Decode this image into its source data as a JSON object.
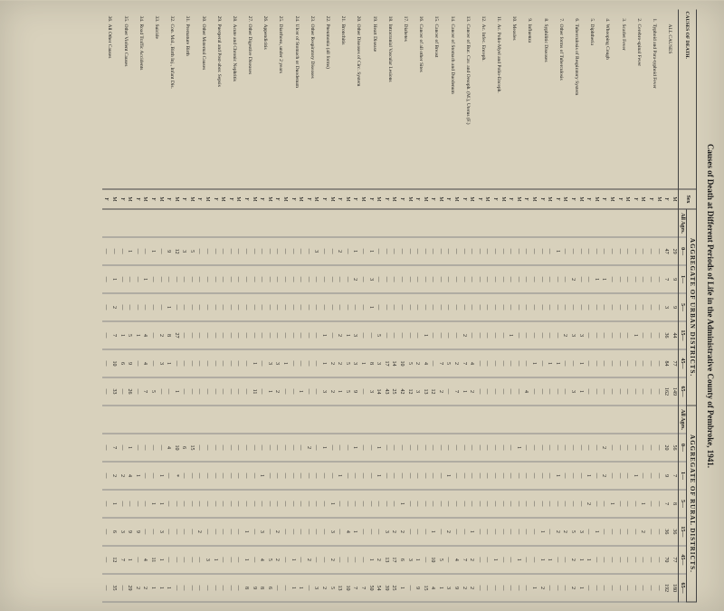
{
  "title": "Causes of Death at Different Periods of Life in the Administrative County of Pembroke, 1941.",
  "headers": {
    "causes": "CAUSES OF DEATH.",
    "urban": "AGGREGATE OF URBAN DISTRICTS.",
    "rural": "AGGREGATE OF RURAL DISTRICTS.",
    "sex": "Sex",
    "all_ages": "All Ages.",
    "age_cols": [
      "0—",
      "1—",
      "5—",
      "15—",
      "45—",
      "65—"
    ]
  },
  "rows": [
    {
      "n": "",
      "label": "ALL CAUSES",
      "sex": [
        "M",
        "F"
      ],
      "u": [
        "",
        "29",
        "9",
        "9",
        "44",
        "77",
        "149",
        "",
        "56",
        "7",
        "8",
        "36",
        "77",
        "180"
      ],
      "u2": [
        "",
        "47",
        "7",
        "3",
        "36",
        "84",
        "162",
        "",
        "20",
        "9",
        "7",
        "36",
        "70",
        "192"
      ]
    },
    {
      "n": "1.",
      "label": "Typhoid and Para-typhoid Fever",
      "sex": [
        "M",
        "F"
      ],
      "u": [
        "",
        "—",
        "—",
        "—",
        "—",
        "—",
        "—",
        "",
        "—",
        "—",
        "—",
        "—",
        "—",
        "—"
      ],
      "u2": [
        "",
        "—",
        "—",
        "—",
        "—",
        "—",
        "—",
        "",
        "—",
        "—",
        "—",
        "—",
        "—",
        "—"
      ]
    },
    {
      "n": "2.",
      "label": "Cerebro-spinal Fever",
      "sex": [
        "M",
        "F"
      ],
      "u": [
        "",
        "—",
        "—",
        "—",
        "—",
        "—",
        "—",
        "",
        "—",
        "—",
        "1",
        "2",
        "—",
        "—"
      ],
      "u2": [
        "",
        "—",
        "—",
        "—",
        "1",
        "—",
        "—",
        "",
        "—",
        "1",
        "—",
        "—",
        "—",
        "—"
      ]
    },
    {
      "n": "3.",
      "label": "Scarlet Fever",
      "sex": [
        "M",
        "F"
      ],
      "u": [
        "",
        "—",
        "—",
        "—",
        "—",
        "—",
        "—",
        "",
        "—",
        "—",
        "—",
        "—",
        "—",
        "—"
      ],
      "u2": [
        "",
        "—",
        "—",
        "—",
        "—",
        "—",
        "—",
        "",
        "—",
        "—",
        "—",
        "—",
        "—",
        "—"
      ]
    },
    {
      "n": "4.",
      "label": "Whooping Cough",
      "sex": [
        "M",
        "F"
      ],
      "u": [
        "",
        "—",
        "—",
        "—",
        "—",
        "—",
        "—",
        "",
        "—",
        "—",
        "1",
        "—",
        "—",
        "—"
      ],
      "u2": [
        "",
        "—",
        "1",
        "—",
        "—",
        "—",
        "—",
        "",
        "2",
        "2",
        "—",
        "—",
        "—",
        "—"
      ]
    },
    {
      "n": "5.",
      "label": "Diphtheria",
      "sex": [
        "M",
        "F"
      ],
      "u": [
        "",
        "—",
        "1",
        "—",
        "—",
        "—",
        "—",
        "",
        "—",
        "—",
        "—",
        "1",
        "—",
        "—"
      ],
      "u2": [
        "",
        "—",
        "—",
        "—",
        "—",
        "—",
        "—",
        "",
        "—",
        "1",
        "2",
        "—",
        "1",
        "—"
      ]
    },
    {
      "n": "6.",
      "label": "Tuberculosis of Respiratory System",
      "sex": [
        "M",
        "F"
      ],
      "u": [
        "",
        "—",
        "—",
        "—",
        "3",
        "1",
        "1",
        "",
        "—",
        "—",
        "—",
        "3",
        "1",
        "1"
      ],
      "u2": [
        "",
        "—",
        "2",
        "—",
        "3",
        "—",
        "3",
        "",
        "—",
        "—",
        "—",
        "5",
        "2",
        "2"
      ]
    },
    {
      "n": "7.",
      "label": "Other forms of Tuberculosis",
      "sex": [
        "M",
        "F"
      ],
      "u": [
        "",
        "—",
        "—",
        "—",
        "2",
        "—",
        "—",
        "",
        "—",
        "—",
        "—",
        "2",
        "—",
        "—"
      ],
      "u2": [
        "",
        "1",
        "—",
        "—",
        "—",
        "1",
        "—",
        "",
        "—",
        "1",
        "—",
        "2",
        "—",
        "—"
      ]
    },
    {
      "n": "8.",
      "label": "Syphilitic Diseases",
      "sex": [
        "M",
        "F"
      ],
      "u": [
        "",
        "—",
        "—",
        "—",
        "—",
        "1",
        "—",
        "",
        "—",
        "—",
        "—",
        "—",
        "1",
        "—"
      ],
      "u2": [
        "",
        "—",
        "—",
        "—",
        "—",
        "—",
        "—",
        "",
        "—",
        "—",
        "—",
        "1",
        "1",
        "2"
      ]
    },
    {
      "n": "9.",
      "label": "Influenza",
      "sex": [
        "M",
        "F"
      ],
      "u": [
        "",
        "—",
        "—",
        "—",
        "—",
        "1",
        "—",
        "",
        "—",
        "—",
        "—",
        "—",
        "—",
        "1"
      ],
      "u2": [
        "",
        "—",
        "—",
        "—",
        "—",
        "—",
        "4",
        "",
        "—",
        "—",
        "—",
        "—",
        "—",
        "—"
      ]
    },
    {
      "n": "10.",
      "label": "Measles",
      "sex": [
        "M",
        "F"
      ],
      "u": [
        "",
        "—",
        "—",
        "—",
        "—",
        "—",
        "—",
        "",
        "1",
        "—",
        "—",
        "—",
        "1",
        "—"
      ],
      "u2": [
        "",
        "—",
        "—",
        "—",
        "1",
        "—",
        "—",
        "",
        "—",
        "—",
        "—",
        "—",
        "—",
        "—"
      ]
    },
    {
      "n": "11.",
      "label": "Ac. Polio-Myel and Polio-Enceph.",
      "sex": [
        "M",
        "F"
      ],
      "u": [
        "",
        "—",
        "—",
        "—",
        "—",
        "—",
        "—",
        "",
        "—",
        "—",
        "—",
        "—",
        "—",
        "—"
      ],
      "u2": [
        "",
        "—",
        "—",
        "—",
        "—",
        "—",
        "—",
        "",
        "—",
        "—",
        "—",
        "—",
        "1",
        "—"
      ]
    },
    {
      "n": "12.",
      "label": "Ac. Infec. Enceph.",
      "sex": [
        "M",
        "F"
      ],
      "u": [
        "",
        "—",
        "—",
        "—",
        "—",
        "—",
        "—",
        "",
        "—",
        "—",
        "—",
        "—",
        "—",
        "—"
      ],
      "u2": [
        "",
        "—",
        "—",
        "—",
        "—",
        "—",
        "—",
        "",
        "—",
        "—",
        "—",
        "—",
        "—",
        "—"
      ]
    },
    {
      "n": "13.",
      "label": "Cancer of Buc. Cav. and Oesoph. (M.), Uterus (F.)",
      "sex": [
        "M",
        "F"
      ],
      "u": [
        "",
        "—",
        "—",
        "—",
        "—",
        "4",
        "2",
        "",
        "—",
        "—",
        "—",
        "1",
        "2",
        "2"
      ],
      "u2": [
        "",
        "—",
        "—",
        "—",
        "2",
        "7",
        "1",
        "",
        "—",
        "—",
        "—",
        "—",
        "7",
        "2"
      ]
    },
    {
      "n": "14.",
      "label": "Cancer of Stomach and Duodenum",
      "sex": [
        "M",
        "F"
      ],
      "u": [
        "",
        "—",
        "—",
        "—",
        "—",
        "2",
        "7",
        "",
        "—",
        "—",
        "—",
        "—",
        "4",
        "9"
      ],
      "u2": [
        "",
        "—",
        "—",
        "—",
        "—",
        "5",
        "—",
        "",
        "—",
        "1",
        "—",
        "2",
        "—",
        "3"
      ]
    },
    {
      "n": "15.",
      "label": "Cancer of Breast",
      "sex": [
        "M",
        "F"
      ],
      "u": [
        "",
        "—",
        "—",
        "—",
        "—",
        "7",
        "2",
        "",
        "—",
        "—",
        "—",
        "—",
        "5",
        "1"
      ],
      "u2": [
        "",
        "—",
        "—",
        "—",
        "—",
        "—",
        "12",
        "",
        "—",
        "—",
        "—",
        "1",
        "10",
        "4"
      ]
    },
    {
      "n": "16.",
      "label": "Cancer of all other Sites",
      "sex": [
        "M",
        "F"
      ],
      "u": [
        "",
        "—",
        "—",
        "—",
        "1",
        "4",
        "13",
        "",
        "—",
        "—",
        "—",
        "—",
        "—",
        "15"
      ],
      "u2": [
        "",
        "—",
        "—",
        "—",
        "—",
        "2",
        "3",
        "",
        "—",
        "—",
        "—",
        "—",
        "1",
        "9"
      ]
    },
    {
      "n": "17.",
      "label": "Diabetes",
      "sex": [
        "M",
        "F"
      ],
      "u": [
        "",
        "—",
        "—",
        "—",
        "—",
        "5",
        "12",
        "",
        "—",
        "—",
        "—",
        "—",
        "3",
        "—"
      ],
      "u2": [
        "",
        "—",
        "—",
        "—",
        "—",
        "10",
        "42",
        "",
        "—",
        "—",
        "1",
        "2",
        "6",
        "1"
      ]
    },
    {
      "n": "18.",
      "label": "Intracranial Vascular Lesions",
      "sex": [
        "M",
        "F"
      ],
      "u": [
        "",
        "—",
        "—",
        "—",
        "—",
        "14",
        "25",
        "",
        "—",
        "—",
        "—",
        "2",
        "17",
        "25"
      ],
      "u2": [
        "",
        "—",
        "—",
        "—",
        "—",
        "17",
        "43",
        "",
        "—",
        "—",
        "—",
        "3",
        "13",
        "39"
      ]
    },
    {
      "n": "19.",
      "label": "Heart Disease",
      "sex": [
        "M",
        "F"
      ],
      "u": [
        "",
        "—",
        "—",
        "—",
        "5",
        "3",
        "14",
        "",
        "1",
        "1",
        "—",
        "—",
        "2",
        "54"
      ],
      "u2": [
        "",
        "1",
        "3",
        "1",
        "—",
        "8",
        "3",
        "",
        "—",
        "—",
        "—",
        "—",
        "1",
        "50"
      ]
    },
    {
      "n": "20.",
      "label": "Other Diseases of Circ. System",
      "sex": [
        "M",
        "F"
      ],
      "u": [
        "",
        "—",
        "—",
        "—",
        "—",
        "1",
        "—",
        "",
        "—",
        "—",
        "—",
        "—",
        "—",
        "7"
      ],
      "u2": [
        "",
        "1",
        "2",
        "—",
        "3",
        "3",
        "9",
        "",
        "1",
        "—",
        "—",
        "1",
        "—",
        "7"
      ]
    },
    {
      "n": "21.",
      "label": "Bronchitis",
      "sex": [
        "M",
        "F"
      ],
      "u": [
        "",
        "—",
        "—",
        "—",
        "1",
        "5",
        "5",
        "",
        "—",
        "—",
        "—",
        "4",
        "—",
        "10"
      ],
      "u2": [
        "",
        "2",
        "—",
        "—",
        "2",
        "2",
        "1",
        "",
        "—",
        "1",
        "—",
        "—",
        "—",
        "13"
      ]
    },
    {
      "n": "22.",
      "label": "Pneumonia (all forms)",
      "sex": [
        "M",
        "F"
      ],
      "u": [
        "",
        "—",
        "—",
        "—",
        "—",
        "2",
        "2",
        "",
        "—",
        "—",
        "1",
        "3",
        "2",
        "5"
      ],
      "u2": [
        "",
        "—",
        "—",
        "—",
        "1",
        "1",
        "3",
        "",
        "1",
        "—",
        "—",
        "—",
        "—",
        "2"
      ]
    },
    {
      "n": "23.",
      "label": "Other Respiratory Diseases",
      "sex": [
        "M",
        "F"
      ],
      "u": [
        "",
        "3",
        "—",
        "—",
        "—",
        "—",
        "—",
        "",
        "—",
        "—",
        "—",
        "—",
        "—",
        "3"
      ],
      "u2": [
        "",
        "—",
        "—",
        "—",
        "—",
        "—",
        "—",
        "",
        "2",
        "—",
        "—",
        "—",
        "2",
        "—"
      ]
    },
    {
      "n": "24.",
      "label": "Ulcer of Stomach or Duodenum",
      "sex": [
        "M",
        "F"
      ],
      "u": [
        "",
        "—",
        "—",
        "—",
        "—",
        "—",
        "1",
        "",
        "—",
        "—",
        "—",
        "—",
        "—",
        "1"
      ],
      "u2": [
        "",
        "—",
        "—",
        "—",
        "—",
        "—",
        "—",
        "",
        "—",
        "—",
        "—",
        "—",
        "1",
        "1"
      ]
    },
    {
      "n": "25.",
      "label": "Diarrhoea, under 2 years",
      "sex": [
        "M",
        "F"
      ],
      "u": [
        "",
        "—",
        "—",
        "—",
        "—",
        "1",
        "—",
        "",
        "—",
        "—",
        "—",
        "—",
        "—",
        "—"
      ],
      "u2": [
        "",
        "—",
        "—",
        "—",
        "—",
        "3",
        "2",
        "",
        "—",
        "—",
        "—",
        "2",
        "2",
        "—"
      ]
    },
    {
      "n": "26.",
      "label": "Appendicitis",
      "sex": [
        "M",
        "F"
      ],
      "u": [
        "",
        "—",
        "—",
        "—",
        "—",
        "3",
        "1",
        "",
        "—",
        "—",
        "—",
        "—",
        "5",
        "6"
      ],
      "u2": [
        "",
        "—",
        "—",
        "—",
        "—",
        "—",
        "—",
        "",
        "—",
        "1",
        "—",
        "3",
        "4",
        "8"
      ]
    },
    {
      "n": "27.",
      "label": "Other Digestive Diseases",
      "sex": [
        "M",
        "F"
      ],
      "u": [
        "",
        "—",
        "—",
        "—",
        "—",
        "1",
        "11",
        "",
        "—",
        "—",
        "—",
        "—",
        "—",
        "9"
      ],
      "u2": [
        "",
        "—",
        "—",
        "—",
        "—",
        "—",
        "—",
        "",
        "—",
        "—",
        "—",
        "1",
        "1",
        "8"
      ]
    },
    {
      "n": "28.",
      "label": "Acute and Chronic Nephritis",
      "sex": [
        "M",
        "F"
      ],
      "u": [
        "",
        "—",
        "—",
        "—",
        "—",
        "—",
        "—",
        "",
        "—",
        "—",
        "—",
        "—",
        "—",
        "—"
      ],
      "u2": [
        "",
        "—",
        "—",
        "—",
        "—",
        "—",
        "—",
        "",
        "—",
        "—",
        "—",
        "—",
        "—",
        "—"
      ]
    },
    {
      "n": "29.",
      "label": "Puerperal and Post-abor. Sepsis",
      "sex": [
        "M",
        "F"
      ],
      "u": [
        "",
        "—",
        "—",
        "—",
        "—",
        "—",
        "—",
        "",
        "—",
        "—",
        "—",
        "—",
        "—",
        "—"
      ],
      "u2": [
        "",
        "—",
        "—",
        "—",
        "—",
        "—",
        "—",
        "",
        "—",
        "—",
        "—",
        "—",
        "1",
        "—"
      ]
    },
    {
      "n": "30.",
      "label": "Other Maternal Causes",
      "sex": [
        "M",
        "F"
      ],
      "u": [
        "",
        "—",
        "—",
        "—",
        "—",
        "—",
        "—",
        "",
        "—",
        "—",
        "—",
        "—",
        "3",
        "—"
      ],
      "u2": [
        "",
        "—",
        "—",
        "—",
        "—",
        "—",
        "—",
        "",
        "—",
        "—",
        "—",
        "2",
        "—",
        "—"
      ]
    },
    {
      "n": "31.",
      "label": "Premature Birth",
      "sex": [
        "M",
        "F"
      ],
      "u": [
        "",
        "5",
        "—",
        "—",
        "—",
        "—",
        "—",
        "",
        "15",
        "—",
        "—",
        "—",
        "—",
        "—"
      ],
      "u2": [
        "",
        "3",
        "—",
        "—",
        "—",
        "—",
        "—",
        "",
        "6",
        "—",
        "—",
        "—",
        "—",
        "—"
      ]
    },
    {
      "n": "32.",
      "label": "Con. Mal., Birth Inj., Infant Dis.",
      "sex": [
        "M",
        "F"
      ],
      "u": [
        "",
        "12",
        "—",
        "—",
        "27",
        "—",
        "1",
        "",
        "10",
        "*",
        "—",
        "—",
        "—",
        "—"
      ],
      "u2": [
        "",
        "9",
        "—",
        "1",
        "8",
        "1",
        "—",
        "",
        "4",
        "—",
        "—",
        "—",
        "—",
        "1"
      ]
    },
    {
      "n": "33.",
      "label": "Suicide",
      "sex": [
        "M",
        "F"
      ],
      "u": [
        "",
        "—",
        "—",
        "—",
        "2",
        "3",
        "—",
        "",
        "—",
        "1",
        "1",
        "3",
        "1",
        "1"
      ],
      "u2": [
        "",
        "1",
        "—",
        "—",
        "—",
        "—",
        "5",
        "",
        "—",
        "—",
        "1",
        "—",
        "11",
        "1"
      ]
    },
    {
      "n": "34.",
      "label": "Road Traffic Accidents",
      "sex": [
        "M",
        "F"
      ],
      "u": [
        "",
        "—",
        "1",
        "—",
        "4",
        "4",
        "7",
        "",
        "—",
        "—",
        "—",
        "—",
        "4",
        "2"
      ],
      "u2": [
        "",
        "—",
        "—",
        "—",
        "1",
        "—",
        "—",
        "",
        "—",
        "1",
        "—",
        "9",
        "—",
        "2"
      ]
    },
    {
      "n": "35.",
      "label": "Other Violent Causes",
      "sex": [
        "M",
        "F"
      ],
      "u": [
        "",
        "1",
        "—",
        "—",
        "5",
        "9",
        "26",
        "",
        "1",
        "4",
        "—",
        "9",
        "1",
        "29"
      ],
      "u2": [
        "",
        "—",
        "—",
        "—",
        "1",
        "6",
        "—",
        "",
        "—",
        "2",
        "—",
        "3",
        "7",
        "—"
      ]
    },
    {
      "n": "36.",
      "label": "All Other Causes",
      "sex": [
        "M",
        "F"
      ],
      "u": [
        "",
        "—",
        "1",
        "2",
        "7",
        "10",
        "33",
        "",
        "7",
        "2",
        "1",
        "6",
        "12",
        "35"
      ],
      "u2": [
        "",
        "—",
        "—",
        "—",
        "—",
        "—",
        "—",
        "",
        "—",
        "—",
        "—",
        "—",
        "—",
        "—"
      ]
    }
  ]
}
